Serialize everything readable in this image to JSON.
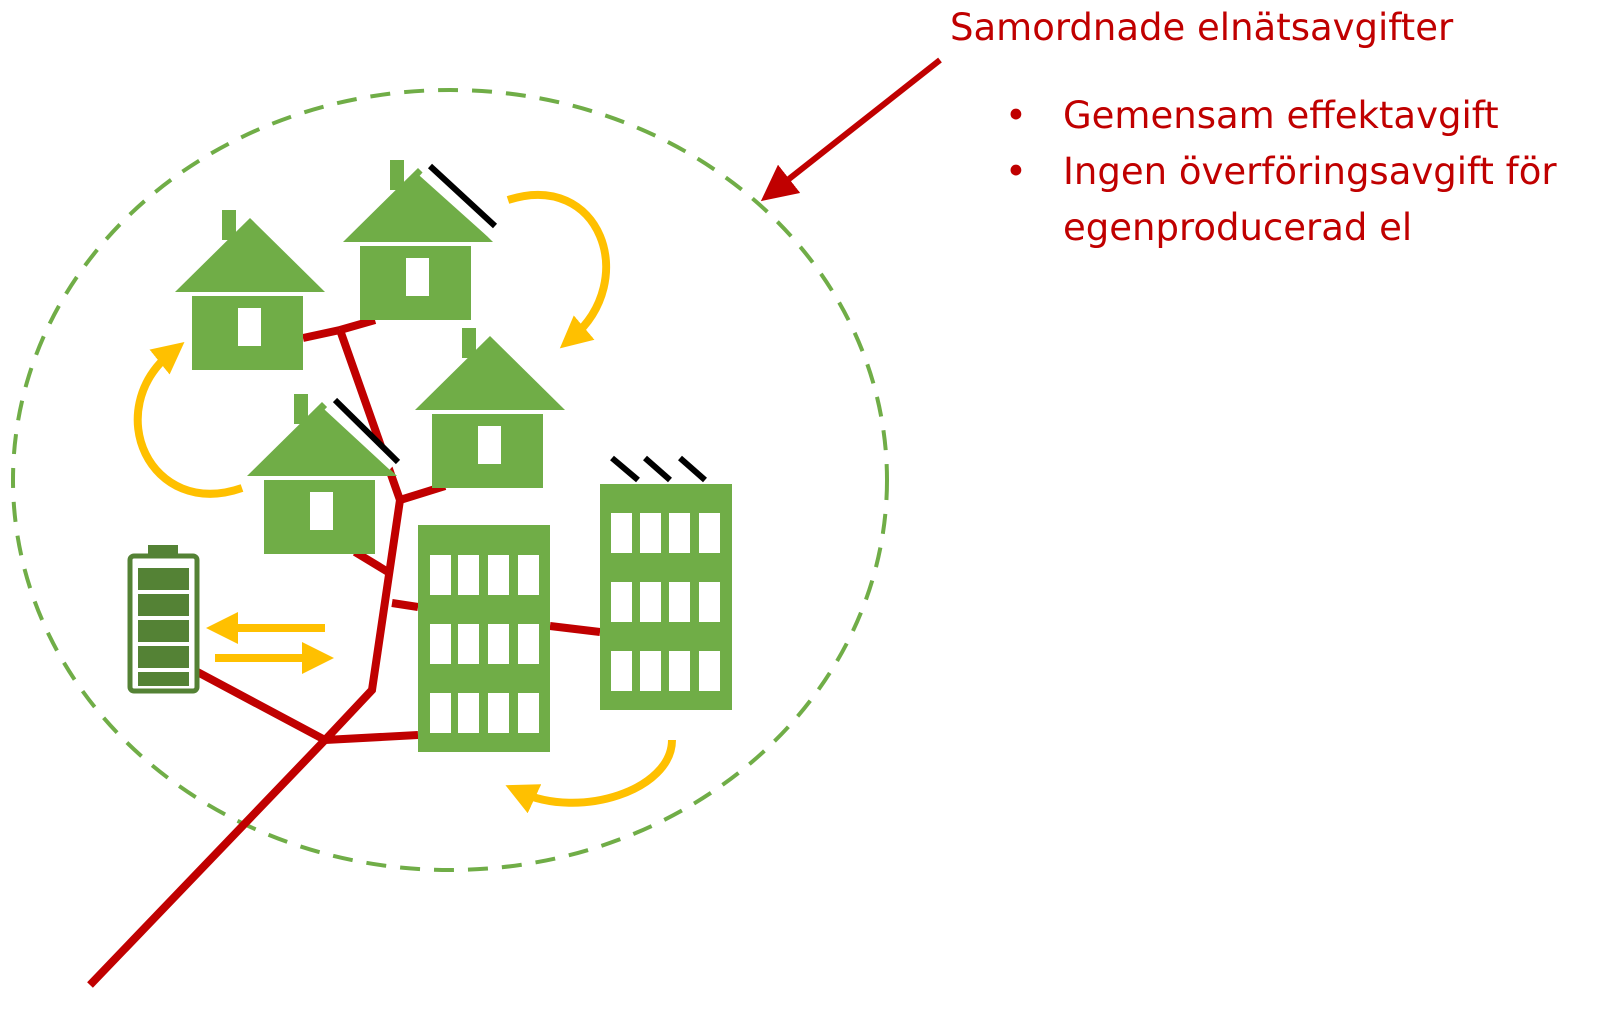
{
  "header": {
    "title": "Samordnade elnätsavgifter"
  },
  "bullets": [
    "Gemensam effektavgift",
    "Ingen överföringsavgift för egenproducerad el"
  ]
}
